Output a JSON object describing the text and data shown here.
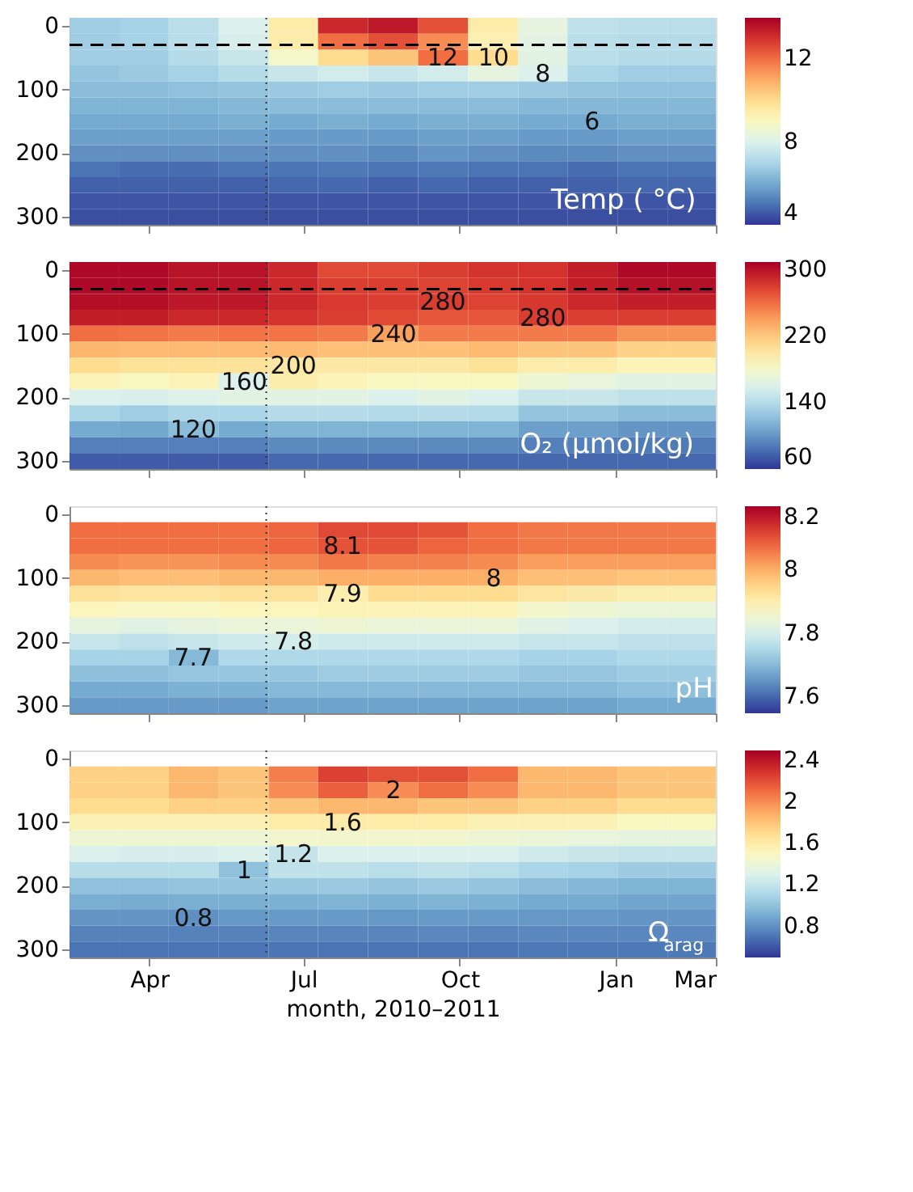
{
  "chart_data": [
    {
      "type": "heatmap",
      "x": [
        "2010-02-28",
        "2010-03-29",
        "2010-04-27",
        "2010-05-27",
        "2010-06-25",
        "2010-07-24",
        "2010-08-23",
        "2010-09-21",
        "2010-10-21",
        "2010-11-19",
        "2010-12-18",
        "2011-01-17",
        "2011-02-15"
      ],
      "y_categories": [
        "0",
        null,
        null,
        null,
        "100",
        null,
        null,
        null,
        "200",
        null,
        null,
        null,
        "300"
      ],
      "xlim": [
        "2010-02-13",
        "2011-03-01"
      ],
      "xticks": [
        {
          "value": "2010-04-01",
          "label": null
        },
        {
          "value": "2010-07-01",
          "label": null
        },
        {
          "value": "2010-10-01",
          "label": null
        },
        {
          "value": "2011-01-01",
          "label": null
        },
        {
          "value": "2011-03-01",
          "label": null
        }
      ],
      "tick_labels": "y",
      "clim": [
        4,
        14
      ],
      "cticks": [
        4,
        8,
        12
      ],
      "cells": [
        [
          6.8,
          6.9,
          7.3,
          8.0,
          9.5,
          13.2,
          13.5,
          12.5,
          9.5,
          8.3,
          7.4,
          7.3,
          7.3
        ],
        [
          6.8,
          6.9,
          7.3,
          7.9,
          9.5,
          12,
          12.5,
          11.5,
          9.3,
          8.2,
          7.3,
          7.2,
          7.2
        ],
        [
          6.8,
          6.8,
          7.2,
          7.6,
          8.8,
          10,
          10.5,
          12,
          10,
          8.2,
          7.3,
          7.2,
          7.2
        ],
        [
          6.6,
          6.7,
          6.9,
          7.2,
          7.6,
          7.8,
          7.6,
          7.8,
          8.3,
          8,
          7.0,
          6.8,
          6.8
        ],
        [
          6.4,
          6.4,
          6.5,
          6.6,
          6.7,
          6.8,
          6.7,
          6.8,
          6.8,
          6.7,
          6.6,
          6.5,
          6.5
        ],
        [
          6.2,
          6.2,
          6.2,
          6.3,
          6.4,
          6.4,
          6.4,
          6.4,
          6.4,
          6.3,
          6.3,
          6.3,
          6.3
        ],
        [
          6.0,
          6.0,
          6.0,
          6.1,
          6.0,
          6.1,
          6.0,
          6.1,
          6.1,
          6.0,
          6,
          6.1,
          6.1
        ],
        [
          5.8,
          5.8,
          5.8,
          5.8,
          5.7,
          5.7,
          5.7,
          5.8,
          5.8,
          5.7,
          5.7,
          5.8,
          5.8
        ],
        [
          5.5,
          5.5,
          5.5,
          5.5,
          5.5,
          5.5,
          5.4,
          5.6,
          5.5,
          5.4,
          5.4,
          5.5,
          5.5
        ],
        [
          5.0,
          4.9,
          4.9,
          5.0,
          5.0,
          5.1,
          5.0,
          5.1,
          5.0,
          5.0,
          4.9,
          5.0,
          5.0
        ],
        [
          4.7,
          4.7,
          4.7,
          4.7,
          4.8,
          4.8,
          4.7,
          4.8,
          4.7,
          4.7,
          4.7,
          4.8,
          4.8
        ],
        [
          4.5,
          4.5,
          4.5,
          4.5,
          4.5,
          4.5,
          4.5,
          4.5,
          4.5,
          4.5,
          4.5,
          4.5,
          4.5
        ],
        [
          4.4,
          4.4,
          4.4,
          4.4,
          4.4,
          4.4,
          4.4,
          4.4,
          4.4,
          4.4,
          4.4,
          4.4,
          4.4
        ]
      ],
      "cell_labels": [
        [
          null,
          null,
          null,
          null,
          null,
          null,
          null,
          null,
          null,
          null,
          null,
          null,
          null
        ],
        [
          null,
          null,
          null,
          null,
          null,
          null,
          null,
          null,
          null,
          null,
          null,
          null,
          null
        ],
        [
          null,
          null,
          null,
          null,
          null,
          null,
          null,
          "12",
          "10",
          null,
          null,
          null,
          null
        ],
        [
          null,
          null,
          null,
          null,
          null,
          null,
          null,
          null,
          null,
          "8",
          null,
          null,
          null
        ],
        [
          null,
          null,
          null,
          null,
          null,
          null,
          null,
          null,
          null,
          null,
          null,
          null,
          null
        ],
        [
          null,
          null,
          null,
          null,
          null,
          null,
          null,
          null,
          null,
          null,
          null,
          null,
          null
        ],
        [
          null,
          null,
          null,
          null,
          null,
          null,
          null,
          null,
          null,
          null,
          "6",
          null,
          null
        ],
        [
          null,
          null,
          null,
          null,
          null,
          null,
          null,
          null,
          null,
          null,
          null,
          null,
          null
        ],
        [
          null,
          null,
          null,
          null,
          null,
          null,
          null,
          null,
          null,
          null,
          null,
          null,
          null
        ],
        [
          null,
          null,
          null,
          null,
          null,
          null,
          null,
          null,
          null,
          null,
          null,
          null,
          null
        ],
        [
          null,
          null,
          null,
          null,
          null,
          null,
          null,
          null,
          null,
          null,
          null,
          null,
          null
        ],
        [
          null,
          null,
          null,
          null,
          null,
          null,
          null,
          null,
          null,
          null,
          null,
          null,
          null
        ],
        [
          null,
          null,
          null,
          null,
          null,
          null,
          null,
          null,
          null,
          null,
          null,
          null,
          null
        ]
      ],
      "ref_lines": [
        {
          "axis": "x",
          "value": "2010-06-09",
          "line_style": "dotted",
          "color": "#333333"
        }
      ],
      "annotations": [
        "Temp ( °C)"
      ]
    },
    {
      "type": "heatmap",
      "x": [
        "2010-02-28",
        "2010-03-29",
        "2010-04-27",
        "2010-05-27",
        "2010-06-25",
        "2010-07-24",
        "2010-08-23",
        "2010-09-21",
        "2010-10-21",
        "2010-11-19",
        "2010-12-18",
        "2011-01-17",
        "2011-02-15"
      ],
      "y_categories": [
        "0",
        null,
        null,
        null,
        "100",
        null,
        null,
        null,
        "200",
        null,
        null,
        null,
        "300"
      ],
      "xlim": [
        "2010-02-13",
        "2011-03-01"
      ],
      "xticks": [
        {
          "value": "2010-04-01",
          "label": null
        },
        {
          "value": "2010-07-01",
          "label": null
        },
        {
          "value": "2010-10-01",
          "label": null
        },
        {
          "value": "2011-01-01",
          "label": null
        },
        {
          "value": "2011-03-01",
          "label": null
        }
      ],
      "tick_labels": "y",
      "clim": [
        60,
        310
      ],
      "cticks": [
        60,
        140,
        220,
        300
      ],
      "cells": [
        [
          305,
          305,
          300,
          300,
          290,
          275,
          275,
          280,
          285,
          285,
          295,
          305,
          305
        ],
        [
          305,
          305,
          300,
          300,
          290,
          280,
          280,
          278,
          282,
          285,
          295,
          302,
          302
        ],
        [
          303,
          303,
          298,
          298,
          290,
          282,
          280,
          280,
          278,
          283,
          290,
          295,
          295
        ],
        [
          295,
          295,
          290,
          290,
          285,
          280,
          275,
          270,
          270,
          280,
          280,
          280,
          280
        ],
        [
          260,
          258,
          255,
          258,
          258,
          255,
          240,
          255,
          255,
          255,
          255,
          245,
          245
        ],
        [
          230,
          228,
          228,
          228,
          228,
          225,
          225,
          225,
          228,
          222,
          222,
          215,
          215
        ],
        [
          210,
          205,
          205,
          205,
          200,
          200,
          200,
          200,
          205,
          195,
          195,
          190,
          190
        ],
        [
          190,
          185,
          190,
          160,
          195,
          190,
          185,
          185,
          185,
          175,
          170,
          165,
          165
        ],
        [
          160,
          158,
          162,
          165,
          165,
          165,
          160,
          165,
          160,
          150,
          150,
          145,
          145
        ],
        [
          135,
          130,
          135,
          135,
          140,
          140,
          138,
          140,
          138,
          125,
          125,
          120,
          120
        ],
        [
          110,
          108,
          120,
          110,
          115,
          115,
          115,
          115,
          115,
          105,
          105,
          100,
          100
        ],
        [
          90,
          90,
          90,
          90,
          95,
          95,
          95,
          95,
          95,
          90,
          90,
          88,
          88
        ],
        [
          75,
          75,
          75,
          75,
          80,
          80,
          80,
          80,
          80,
          80,
          80,
          80,
          80
        ]
      ],
      "cell_labels": [
        [
          null,
          null,
          null,
          null,
          null,
          null,
          null,
          null,
          null,
          null,
          null,
          null,
          null
        ],
        [
          null,
          null,
          null,
          null,
          null,
          null,
          null,
          null,
          null,
          null,
          null,
          null,
          null
        ],
        [
          null,
          null,
          null,
          null,
          null,
          null,
          null,
          "280",
          null,
          null,
          null,
          null,
          null
        ],
        [
          null,
          null,
          null,
          null,
          null,
          null,
          null,
          null,
          null,
          "280",
          null,
          null,
          null
        ],
        [
          null,
          null,
          null,
          null,
          null,
          null,
          "240",
          null,
          null,
          null,
          null,
          null,
          null
        ],
        [
          null,
          null,
          null,
          null,
          null,
          null,
          null,
          null,
          null,
          null,
          null,
          null,
          null
        ],
        [
          null,
          null,
          null,
          null,
          "200",
          null,
          null,
          null,
          null,
          null,
          null,
          null,
          null
        ],
        [
          null,
          null,
          null,
          "160",
          null,
          null,
          null,
          null,
          null,
          null,
          null,
          null,
          null
        ],
        [
          null,
          null,
          null,
          null,
          null,
          null,
          null,
          null,
          null,
          null,
          null,
          null,
          null
        ],
        [
          null,
          null,
          null,
          null,
          null,
          null,
          null,
          null,
          null,
          null,
          null,
          null,
          null
        ],
        [
          null,
          null,
          "120",
          null,
          null,
          null,
          null,
          null,
          null,
          null,
          null,
          null,
          null
        ],
        [
          null,
          null,
          null,
          null,
          null,
          null,
          null,
          null,
          null,
          null,
          null,
          null,
          null
        ],
        [
          null,
          null,
          null,
          null,
          null,
          null,
          null,
          null,
          null,
          null,
          null,
          null,
          null
        ]
      ],
      "ref_lines": [
        {
          "axis": "x",
          "value": "2010-06-09",
          "line_style": "dotted",
          "color": "#333333"
        }
      ],
      "annotations": [
        "O₂ (μmol/kg)"
      ]
    },
    {
      "type": "heatmap",
      "x": [
        "2010-02-28",
        "2010-03-29",
        "2010-04-27",
        "2010-05-27",
        "2010-06-25",
        "2010-07-24",
        "2010-08-23",
        "2010-09-21",
        "2010-10-21",
        "2010-11-19",
        "2010-12-18",
        "2011-01-17",
        "2011-02-15"
      ],
      "y_categories": [
        "0",
        null,
        null,
        null,
        "100",
        null,
        null,
        null,
        "200",
        null,
        null,
        null,
        "300"
      ],
      "xlim": [
        "2010-02-13",
        "2011-03-01"
      ],
      "xticks": [
        {
          "value": "2010-04-01",
          "label": null
        },
        {
          "value": "2010-07-01",
          "label": null
        },
        {
          "value": "2010-10-01",
          "label": null
        },
        {
          "value": "2011-01-01",
          "label": null
        },
        {
          "value": "2011-03-01",
          "label": null
        }
      ],
      "tick_labels": "y",
      "clim": [
        7.55,
        8.2
      ],
      "cticks": [
        7.6,
        7.8,
        8,
        8.2
      ],
      "cells": [
        [
          null,
          null,
          null,
          null,
          null,
          null,
          null,
          null,
          null,
          null,
          null,
          null,
          null
        ],
        [
          8.07,
          8.07,
          8.07,
          8.07,
          8.08,
          8.11,
          8.11,
          8.1,
          8.07,
          8.06,
          8.06,
          8.06,
          8.06
        ],
        [
          8.07,
          8.07,
          8.07,
          8.07,
          8.08,
          8.1,
          8.1,
          8.08,
          8.07,
          8.06,
          8.06,
          8.06,
          8.06
        ],
        [
          8.04,
          8.03,
          8.03,
          8.04,
          8.04,
          8.06,
          8.05,
          8.05,
          8.04,
          8.02,
          8.02,
          8.02,
          8.02
        ],
        [
          7.99,
          7.98,
          7.98,
          7.99,
          7.99,
          8.0,
          8.0,
          8.0,
          8,
          7.98,
          7.98,
          7.97,
          7.97
        ],
        [
          7.93,
          7.92,
          7.92,
          7.93,
          7.93,
          7.9,
          7.94,
          7.94,
          7.94,
          7.92,
          7.91,
          7.9,
          7.9
        ],
        [
          7.88,
          7.87,
          7.87,
          7.88,
          7.88,
          7.89,
          7.89,
          7.89,
          7.89,
          7.86,
          7.85,
          7.84,
          7.84
        ],
        [
          7.83,
          7.82,
          7.83,
          7.84,
          7.84,
          7.85,
          7.84,
          7.84,
          7.84,
          7.82,
          7.81,
          7.8,
          7.8
        ],
        [
          7.78,
          7.77,
          7.78,
          7.79,
          7.8,
          7.79,
          7.79,
          7.79,
          7.79,
          7.78,
          7.78,
          7.77,
          7.77
        ],
        [
          7.74,
          7.74,
          7.7,
          7.75,
          7.75,
          7.75,
          7.75,
          7.75,
          7.75,
          7.74,
          7.74,
          7.75,
          7.75
        ],
        [
          7.71,
          7.71,
          7.72,
          7.72,
          7.72,
          7.73,
          7.73,
          7.73,
          7.73,
          7.72,
          7.72,
          7.73,
          7.73
        ],
        [
          7.68,
          7.68,
          7.69,
          7.69,
          7.7,
          7.7,
          7.7,
          7.7,
          7.7,
          7.7,
          7.7,
          7.71,
          7.71
        ],
        [
          7.66,
          7.66,
          7.66,
          7.66,
          7.67,
          7.67,
          7.67,
          7.67,
          7.67,
          7.67,
          7.67,
          7.68,
          7.68
        ]
      ],
      "cell_labels": [
        [
          null,
          null,
          null,
          null,
          null,
          null,
          null,
          null,
          null,
          null,
          null,
          null,
          null
        ],
        [
          null,
          null,
          null,
          null,
          null,
          null,
          null,
          null,
          null,
          null,
          null,
          null,
          null
        ],
        [
          null,
          null,
          null,
          null,
          null,
          "8.1",
          null,
          null,
          null,
          null,
          null,
          null,
          null
        ],
        [
          null,
          null,
          null,
          null,
          null,
          null,
          null,
          null,
          null,
          null,
          null,
          null,
          null
        ],
        [
          null,
          null,
          null,
          null,
          null,
          null,
          null,
          null,
          "8",
          null,
          null,
          null,
          null
        ],
        [
          null,
          null,
          null,
          null,
          null,
          "7.9",
          null,
          null,
          null,
          null,
          null,
          null,
          null
        ],
        [
          null,
          null,
          null,
          null,
          null,
          null,
          null,
          null,
          null,
          null,
          null,
          null,
          null
        ],
        [
          null,
          null,
          null,
          null,
          null,
          null,
          null,
          null,
          null,
          null,
          null,
          null,
          null
        ],
        [
          null,
          null,
          null,
          null,
          "7.8",
          null,
          null,
          null,
          null,
          null,
          null,
          null,
          null
        ],
        [
          null,
          null,
          "7.7",
          null,
          null,
          null,
          null,
          null,
          null,
          null,
          null,
          null,
          null
        ],
        [
          null,
          null,
          null,
          null,
          null,
          null,
          null,
          null,
          null,
          null,
          null,
          null,
          null
        ],
        [
          null,
          null,
          null,
          null,
          null,
          null,
          null,
          null,
          null,
          null,
          null,
          null,
          null
        ],
        [
          null,
          null,
          null,
          null,
          null,
          null,
          null,
          null,
          null,
          null,
          null,
          null,
          null
        ]
      ],
      "ref_lines": [
        {
          "axis": "x",
          "value": "2010-06-09",
          "line_style": "dotted",
          "color": "#333333"
        }
      ],
      "annotations": [
        "pH"
      ]
    },
    {
      "type": "heatmap",
      "x": [
        "2010-02-28",
        "2010-03-29",
        "2010-04-27",
        "2010-05-27",
        "2010-06-25",
        "2010-07-24",
        "2010-08-23",
        "2010-09-21",
        "2010-10-21",
        "2010-11-19",
        "2010-12-18",
        "2011-01-17",
        "2011-02-15"
      ],
      "y_categories": [
        "0",
        null,
        null,
        null,
        "100",
        null,
        null,
        null,
        "200",
        null,
        null,
        null,
        "300"
      ],
      "xlim": [
        "2010-02-13",
        "2011-03-01"
      ],
      "xticks": [
        {
          "value": "2010-04-01",
          "label": "Apr"
        },
        {
          "value": "2010-07-01",
          "label": "Jul"
        },
        {
          "value": "2010-10-01",
          "label": "Oct"
        },
        {
          "value": "2011-01-01",
          "label": "Jan"
        },
        {
          "value": "2011-03-01",
          "label": "Mar"
        }
      ],
      "xlabel": "month, 2010–2011",
      "clim": [
        0.5,
        2.5
      ],
      "cticks": [
        0.8,
        1.2,
        1.6,
        2,
        2.4
      ],
      "cells": [
        [
          null,
          null,
          null,
          null,
          null,
          null,
          null,
          null,
          null,
          null,
          null,
          null,
          null
        ],
        [
          1.75,
          1.75,
          1.85,
          1.8,
          2.05,
          2.25,
          2.2,
          2.2,
          2.1,
          1.85,
          1.85,
          1.8,
          1.8
        ],
        [
          1.75,
          1.75,
          1.85,
          1.8,
          2.0,
          2.15,
          2,
          2.1,
          2.0,
          1.85,
          1.85,
          1.8,
          1.8
        ],
        [
          1.7,
          1.7,
          1.75,
          1.75,
          1.8,
          1.85,
          1.85,
          1.8,
          1.8,
          1.75,
          1.75,
          1.7,
          1.7
        ],
        [
          1.55,
          1.55,
          1.55,
          1.55,
          1.6,
          1.6,
          1.6,
          1.6,
          1.55,
          1.55,
          1.55,
          1.5,
          1.5
        ],
        [
          1.42,
          1.42,
          1.42,
          1.42,
          1.45,
          1.45,
          1.45,
          1.45,
          1.42,
          1.4,
          1.38,
          1.36,
          1.36
        ],
        [
          1.3,
          1.28,
          1.28,
          1.3,
          1.2,
          1.3,
          1.3,
          1.3,
          1.3,
          1.25,
          1.22,
          1.2,
          1.2
        ],
        [
          1.15,
          1.15,
          1.15,
          1,
          1.18,
          1.18,
          1.16,
          1.18,
          1.16,
          1.1,
          1.08,
          1.05,
          1.05
        ],
        [
          1.0,
          1.0,
          1.02,
          1.02,
          1.03,
          1.04,
          1.02,
          1.04,
          1.02,
          0.98,
          0.96,
          0.94,
          0.94
        ],
        [
          0.92,
          0.91,
          0.92,
          0.92,
          0.93,
          0.94,
          0.93,
          0.94,
          0.93,
          0.9,
          0.9,
          0.88,
          0.88
        ],
        [
          0.82,
          0.82,
          0.8,
          0.83,
          0.84,
          0.84,
          0.83,
          0.84,
          0.84,
          0.83,
          0.83,
          0.82,
          0.82
        ],
        [
          0.75,
          0.75,
          0.75,
          0.75,
          0.76,
          0.76,
          0.76,
          0.77,
          0.76,
          0.77,
          0.77,
          0.77,
          0.77
        ],
        [
          0.7,
          0.7,
          0.7,
          0.7,
          0.7,
          0.7,
          0.7,
          0.7,
          0.7,
          0.72,
          0.72,
          0.72,
          0.72
        ]
      ],
      "cell_labels": [
        [
          null,
          null,
          null,
          null,
          null,
          null,
          null,
          null,
          null,
          null,
          null,
          null,
          null
        ],
        [
          null,
          null,
          null,
          null,
          null,
          null,
          null,
          null,
          null,
          null,
          null,
          null,
          null
        ],
        [
          null,
          null,
          null,
          null,
          null,
          null,
          "2",
          null,
          null,
          null,
          null,
          null,
          null
        ],
        [
          null,
          null,
          null,
          null,
          null,
          null,
          null,
          null,
          null,
          null,
          null,
          null,
          null
        ],
        [
          null,
          null,
          null,
          null,
          null,
          "1.6",
          null,
          null,
          null,
          null,
          null,
          null,
          null
        ],
        [
          null,
          null,
          null,
          null,
          null,
          null,
          null,
          null,
          null,
          null,
          null,
          null,
          null
        ],
        [
          null,
          null,
          null,
          null,
          "1.2",
          null,
          null,
          null,
          null,
          null,
          null,
          null,
          null
        ],
        [
          null,
          null,
          null,
          "1",
          null,
          null,
          null,
          null,
          null,
          null,
          null,
          null,
          null
        ],
        [
          null,
          null,
          null,
          null,
          null,
          null,
          null,
          null,
          null,
          null,
          null,
          null,
          null
        ],
        [
          null,
          null,
          null,
          null,
          null,
          null,
          null,
          null,
          null,
          null,
          null,
          null,
          null
        ],
        [
          null,
          null,
          "0.8",
          null,
          null,
          null,
          null,
          null,
          null,
          null,
          null,
          null,
          null
        ],
        [
          null,
          null,
          null,
          null,
          null,
          null,
          null,
          null,
          null,
          null,
          null,
          null,
          null
        ],
        [
          null,
          null,
          null,
          null,
          null,
          null,
          null,
          null,
          null,
          null,
          null,
          null,
          null
        ]
      ],
      "ref_lines": [
        {
          "axis": "x",
          "value": "2010-06-09",
          "line_style": "dotted",
          "color": "#333333"
        }
      ],
      "annotations": [
        "Ω$_{arag}$"
      ]
    }
  ]
}
